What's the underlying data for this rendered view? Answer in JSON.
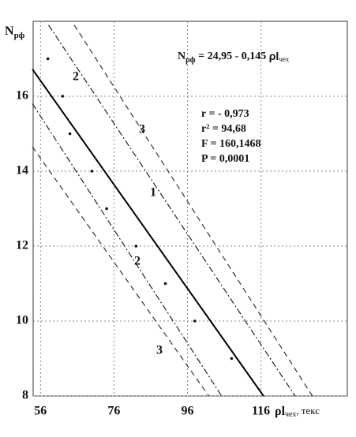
{
  "chart_data": {
    "type": "scatter",
    "y_label": {
      "main": "N",
      "sub": "рф"
    },
    "x_label": {
      "main": "ρl",
      "sub": "чех",
      "rest": ", текс"
    },
    "equation": {
      "main": "N",
      "sub": "рф",
      "mid": " = 24,95 - 0,145 ",
      "var": "ρl",
      "varsub": "чех"
    },
    "stats": [
      "r = - 0,973",
      "r² = 94,68",
      "F = 160,1468",
      "P = 0,0001"
    ],
    "xlim": [
      54,
      139.5
    ],
    "ylim": [
      8,
      18
    ],
    "xticks": [
      56,
      76,
      96,
      116
    ],
    "yticks": [
      8,
      10,
      12,
      14,
      16
    ],
    "grid": true,
    "points": {
      "color": "#111",
      "x": [
        58,
        62,
        64,
        70,
        74,
        82,
        90,
        98,
        108
      ],
      "values": [
        17,
        16,
        15,
        14,
        13,
        12,
        11,
        10,
        9
      ]
    },
    "series": [
      {
        "name": "1",
        "color": "#000",
        "style": "solid",
        "x": [
          53.8,
          116.7
        ],
        "values": [
          16.72,
          8
        ]
      },
      {
        "name": "2",
        "color": "#222",
        "style": "dashdot",
        "x": [
          58.2,
          125.3
        ],
        "values": [
          17.9,
          8
        ]
      },
      {
        "name": "2",
        "color": "#222",
        "style": "dashdot",
        "x": [
          53.8,
          105.3
        ],
        "values": [
          15.8,
          8
        ]
      },
      {
        "name": "3",
        "color": "#333",
        "style": "dashed",
        "x": [
          65.2,
          130
        ],
        "values": [
          17.9,
          8
        ]
      },
      {
        "name": "3",
        "color": "#333",
        "style": "dashed",
        "x": [
          53.8,
          101.8
        ],
        "values": [
          14.65,
          8
        ]
      }
    ]
  }
}
